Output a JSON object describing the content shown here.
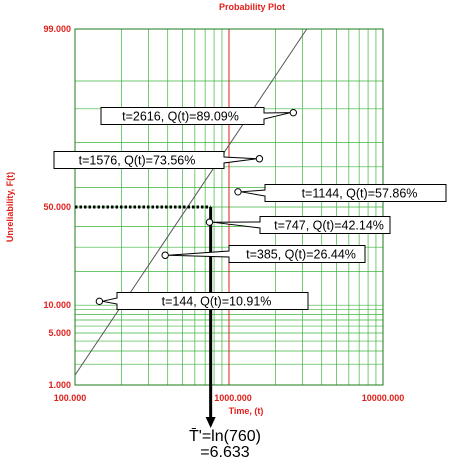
{
  "chart_data": {
    "type": "scatter",
    "title": "Probability Plot",
    "xlabel": "Time, (t)",
    "ylabel": "Unreliability, F(t)",
    "x_scale": "log",
    "y_scale": "lognormal-probability",
    "xlim": [
      100,
      10000
    ],
    "ylim": [
      1,
      99
    ],
    "x_tick_labels": [
      "100.000",
      "1000.000",
      "10000.000"
    ],
    "y_tick_labels": [
      "99.000",
      "50.000",
      "10.000",
      "5.000",
      "1.000"
    ],
    "grid": true,
    "points": [
      {
        "x": 144,
        "y": 10.91,
        "label": "t=144,   Q(t)=10.91%"
      },
      {
        "x": 385,
        "y": 26.44,
        "label": "t=385,   Q(t)=26.44%"
      },
      {
        "x": 747,
        "y": 42.14,
        "label": "t=747,   Q(t)=42.14%"
      },
      {
        "x": 1144,
        "y": 57.86,
        "label": "t=1144,   Q(t)=57.86%"
      },
      {
        "x": 1576,
        "y": 73.56,
        "label": "t=1576,   Q(t)=73.56%"
      },
      {
        "x": 2616,
        "y": 89.09,
        "label": "t=2616,   Q(t)=89.09%"
      }
    ],
    "fit_line": {
      "x": [
        100,
        3200
      ],
      "y": [
        1.4,
        99
      ]
    },
    "median_marker": {
      "x": 760,
      "y": 50
    },
    "annotation": {
      "line1": "T̄'=ln(760)",
      "line2": "=6.633"
    }
  }
}
